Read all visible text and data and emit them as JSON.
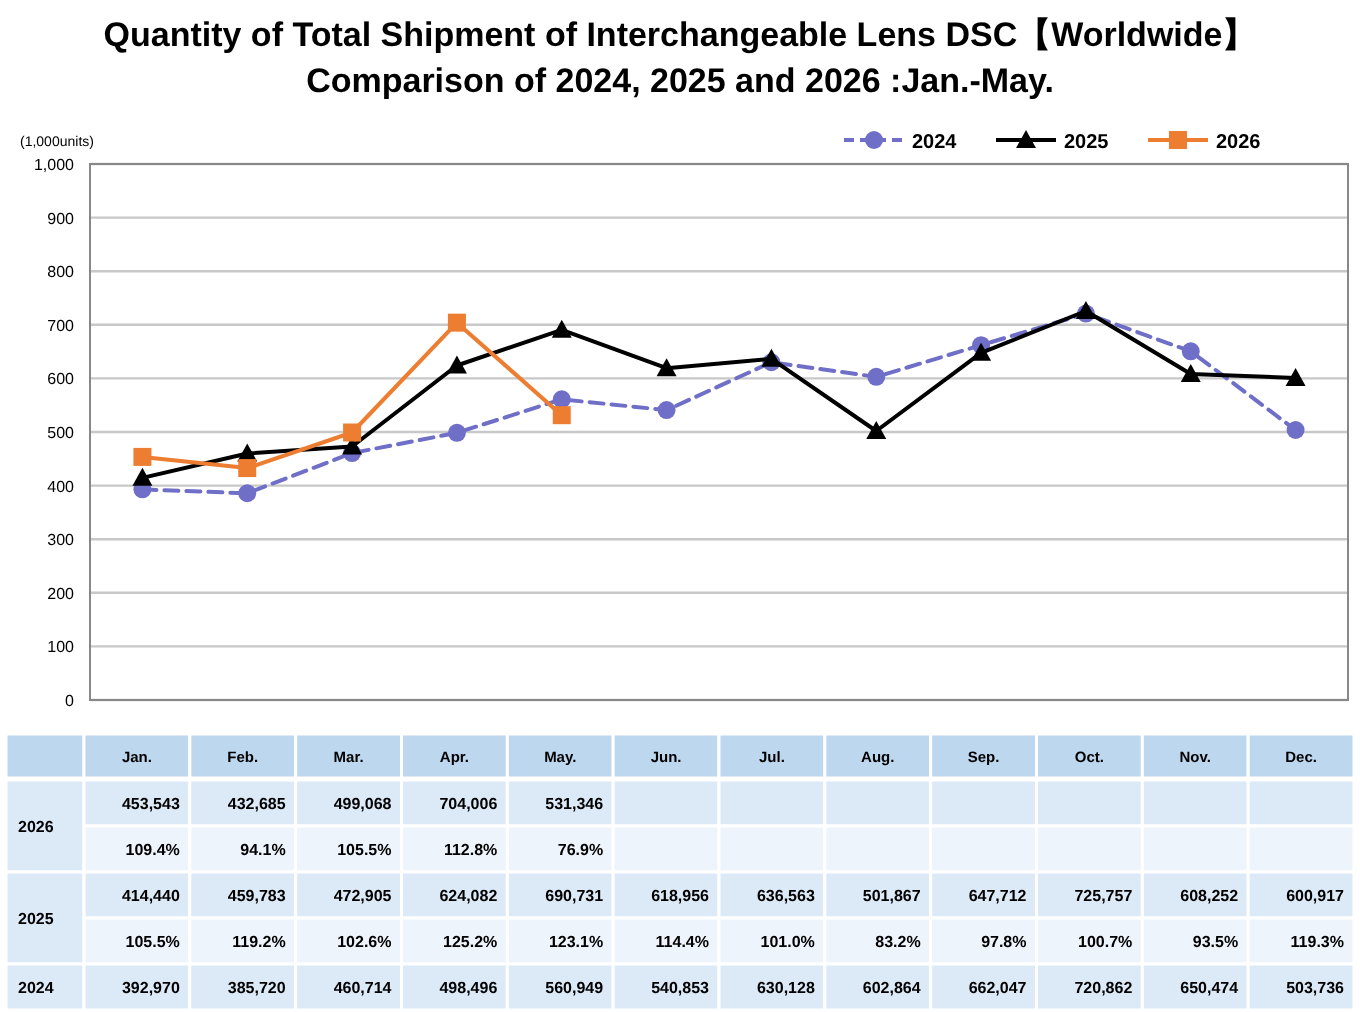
{
  "chart_data": {
    "type": "line",
    "title": "Quantity of Total Shipment of Interchangeable Lens DSC【Worldwide】\nComparison of 2024, 2025 and 2026 :Jan.-May.",
    "ylabel": "(1,000units)",
    "categories": [
      "Jan.",
      "Feb.",
      "Mar.",
      "Apr.",
      "May.",
      "Jun.",
      "Jul.",
      "Aug.",
      "Sep.",
      "Oct.",
      "Nov.",
      "Dec."
    ],
    "series": [
      {
        "name": "2024",
        "color": "#6f6fc8",
        "marker": "circle",
        "line_style": "dashed",
        "values": [
          392.97,
          385.72,
          460.714,
          498.496,
          560.949,
          540.853,
          630.128,
          602.864,
          662.047,
          720.862,
          650.474,
          503.736
        ]
      },
      {
        "name": "2025",
        "color": "#000000",
        "marker": "triangle",
        "line_style": "solid",
        "values": [
          414.44,
          459.783,
          472.905,
          624.082,
          690.731,
          618.956,
          636.563,
          501.867,
          647.712,
          725.757,
          608.252,
          600.917
        ]
      },
      {
        "name": "2026",
        "color": "#ed7d31",
        "marker": "square",
        "line_style": "solid",
        "values": [
          453.543,
          432.685,
          499.068,
          704.006,
          531.346,
          null,
          null,
          null,
          null,
          null,
          null,
          null
        ]
      }
    ],
    "annotations": [
      "453,543",
      "432,685",
      "499,068",
      "704,006",
      "531,346",
      "109.4%",
      "94.1%",
      "105.5%",
      "112.8%",
      "76.9%",
      "414,440",
      "459,783",
      "472,905",
      "624,082",
      "690,731",
      "618,956",
      "636,563",
      "501,867",
      "647,712",
      "725,757",
      "608,252",
      "600,917",
      "105.5%",
      "119.2%",
      "102.6%",
      "125.2%",
      "123.1%",
      "114.4%",
      "101.0%",
      "83.2%",
      "97.8%",
      "100.7%",
      "93.5%",
      "119.3%",
      "392,970",
      "385,720",
      "460,714",
      "498,496",
      "560,949",
      "540,853",
      "630,128",
      "602,864",
      "662,047",
      "720,862",
      "650,474",
      "503,736"
    ],
    "ylim": [
      0,
      1000
    ],
    "yticks": [
      0,
      100,
      200,
      300,
      400,
      500,
      600,
      700,
      800,
      900,
      {
        "value": 1000,
        "label": "1,000"
      }
    ],
    "grid": "y",
    "legend": "top right",
    "tick_labels": "y"
  }
}
